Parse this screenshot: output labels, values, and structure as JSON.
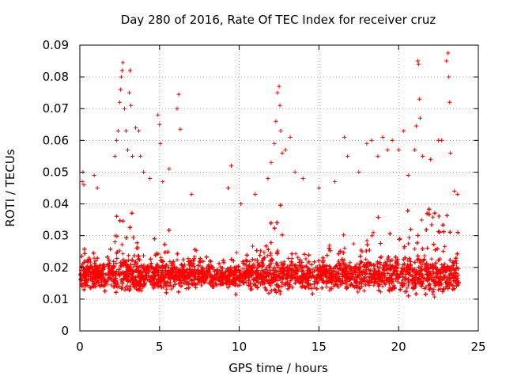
{
  "chart_data": {
    "type": "scatter",
    "title": "Day 280 of 2016, Rate Of TEC Index for receiver cruz",
    "xlabel": "GPS time / hours",
    "ylabel": "ROTI / TECUs",
    "xlim": [
      0,
      25
    ],
    "ylim": [
      0,
      0.09
    ],
    "x_ticks": [
      0,
      5,
      10,
      15,
      20,
      25
    ],
    "y_ticks": [
      0,
      0.01,
      0.02,
      0.03,
      0.04,
      0.05,
      0.06,
      0.07,
      0.08,
      0.09
    ],
    "x_tick_labels": [
      "0",
      "5",
      "10",
      "15",
      "20",
      "25"
    ],
    "y_tick_labels": [
      "0",
      "0.01",
      "0.02",
      "0.03",
      "0.04",
      "0.05",
      "0.06",
      "0.07",
      "0.08",
      "0.09"
    ],
    "grid": true,
    "marker": "+",
    "series": [
      {
        "name": "ROTI",
        "color": "#ff0000",
        "x_range": [
          0.0,
          23.8
        ],
        "typical_range": [
          0.01,
          0.03
        ],
        "outliers": [
          {
            "x": 0.15,
            "y": 0.047
          },
          {
            "x": 0.2,
            "y": 0.05
          },
          {
            "x": 0.25,
            "y": 0.046
          },
          {
            "x": 0.9,
            "y": 0.049
          },
          {
            "x": 1.1,
            "y": 0.045
          },
          {
            "x": 2.2,
            "y": 0.055
          },
          {
            "x": 2.3,
            "y": 0.06
          },
          {
            "x": 2.4,
            "y": 0.063
          },
          {
            "x": 2.5,
            "y": 0.072
          },
          {
            "x": 2.55,
            "y": 0.076
          },
          {
            "x": 2.6,
            "y": 0.08
          },
          {
            "x": 2.65,
            "y": 0.082
          },
          {
            "x": 2.7,
            "y": 0.0845
          },
          {
            "x": 2.8,
            "y": 0.07
          },
          {
            "x": 2.9,
            "y": 0.063
          },
          {
            "x": 3.0,
            "y": 0.057
          },
          {
            "x": 3.1,
            "y": 0.075
          },
          {
            "x": 3.15,
            "y": 0.082
          },
          {
            "x": 3.2,
            "y": 0.071
          },
          {
            "x": 3.3,
            "y": 0.055
          },
          {
            "x": 3.5,
            "y": 0.064
          },
          {
            "x": 3.7,
            "y": 0.063
          },
          {
            "x": 3.8,
            "y": 0.055
          },
          {
            "x": 4.0,
            "y": 0.05
          },
          {
            "x": 4.4,
            "y": 0.048
          },
          {
            "x": 4.9,
            "y": 0.068
          },
          {
            "x": 5.0,
            "y": 0.065
          },
          {
            "x": 5.05,
            "y": 0.059
          },
          {
            "x": 5.2,
            "y": 0.047
          },
          {
            "x": 5.6,
            "y": 0.051
          },
          {
            "x": 6.1,
            "y": 0.07
          },
          {
            "x": 6.2,
            "y": 0.0745
          },
          {
            "x": 6.3,
            "y": 0.0635
          },
          {
            "x": 7.0,
            "y": 0.043
          },
          {
            "x": 9.3,
            "y": 0.045
          },
          {
            "x": 9.5,
            "y": 0.052
          },
          {
            "x": 10.1,
            "y": 0.04
          },
          {
            "x": 11.0,
            "y": 0.043
          },
          {
            "x": 11.8,
            "y": 0.048
          },
          {
            "x": 12.0,
            "y": 0.053
          },
          {
            "x": 12.2,
            "y": 0.059
          },
          {
            "x": 12.3,
            "y": 0.066
          },
          {
            "x": 12.4,
            "y": 0.075
          },
          {
            "x": 12.5,
            "y": 0.077
          },
          {
            "x": 12.55,
            "y": 0.071
          },
          {
            "x": 12.6,
            "y": 0.063
          },
          {
            "x": 12.7,
            "y": 0.056
          },
          {
            "x": 12.9,
            "y": 0.057
          },
          {
            "x": 13.2,
            "y": 0.061
          },
          {
            "x": 13.5,
            "y": 0.05
          },
          {
            "x": 14.0,
            "y": 0.048
          },
          {
            "x": 15.0,
            "y": 0.045
          },
          {
            "x": 16.0,
            "y": 0.047
          },
          {
            "x": 16.6,
            "y": 0.061
          },
          {
            "x": 16.8,
            "y": 0.055
          },
          {
            "x": 17.5,
            "y": 0.05
          },
          {
            "x": 18.0,
            "y": 0.059
          },
          {
            "x": 18.3,
            "y": 0.06
          },
          {
            "x": 18.7,
            "y": 0.055
          },
          {
            "x": 19.0,
            "y": 0.061
          },
          {
            "x": 19.3,
            "y": 0.057
          },
          {
            "x": 19.6,
            "y": 0.06
          },
          {
            "x": 20.0,
            "y": 0.057
          },
          {
            "x": 20.3,
            "y": 0.063
          },
          {
            "x": 20.6,
            "y": 0.049
          },
          {
            "x": 21.0,
            "y": 0.057
          },
          {
            "x": 21.1,
            "y": 0.0645
          },
          {
            "x": 21.2,
            "y": 0.085
          },
          {
            "x": 21.25,
            "y": 0.084
          },
          {
            "x": 21.3,
            "y": 0.073
          },
          {
            "x": 21.35,
            "y": 0.067
          },
          {
            "x": 21.5,
            "y": 0.055
          },
          {
            "x": 22.0,
            "y": 0.054
          },
          {
            "x": 22.5,
            "y": 0.06
          },
          {
            "x": 22.7,
            "y": 0.06
          },
          {
            "x": 23.0,
            "y": 0.085
          },
          {
            "x": 23.1,
            "y": 0.0875
          },
          {
            "x": 23.15,
            "y": 0.08
          },
          {
            "x": 23.2,
            "y": 0.072
          },
          {
            "x": 23.25,
            "y": 0.056
          },
          {
            "x": 23.5,
            "y": 0.044
          },
          {
            "x": 23.7,
            "y": 0.043
          }
        ]
      }
    ]
  }
}
